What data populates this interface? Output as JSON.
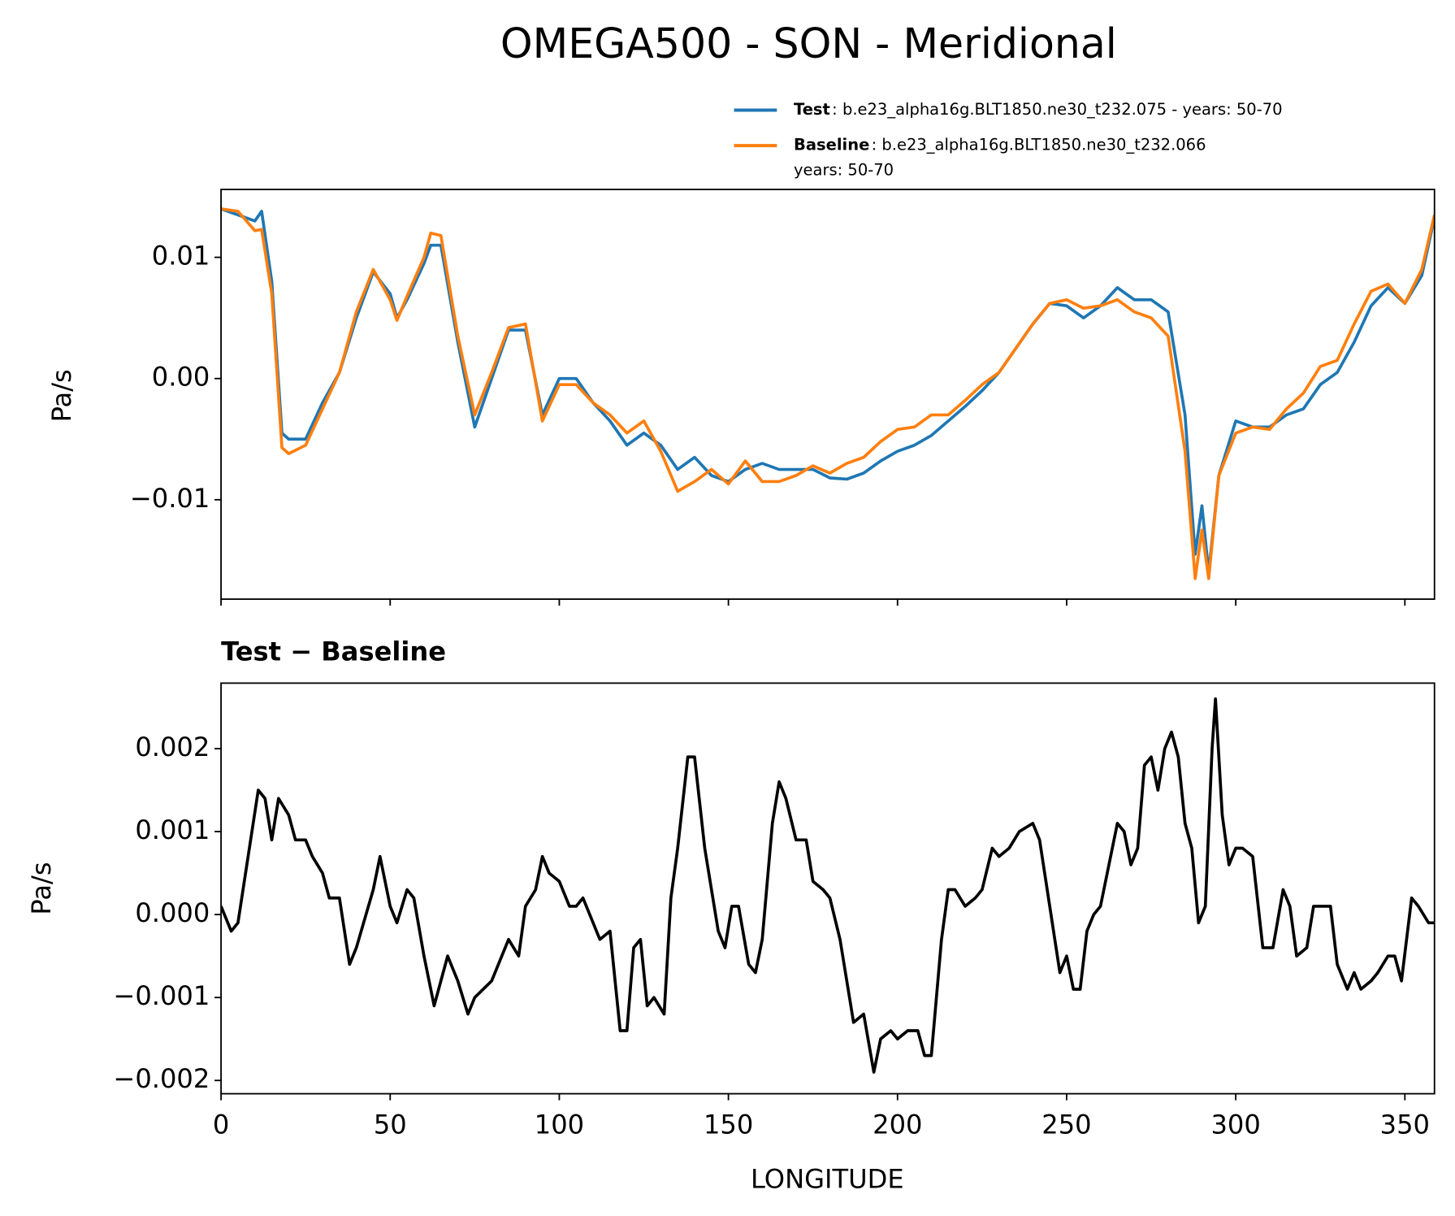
{
  "chart_data": [
    {
      "type": "line",
      "title": "OMEGA500 - SON - Meridional",
      "ylabel": "Pa/s",
      "x": [
        0,
        5,
        10,
        12,
        15,
        18,
        20,
        25,
        30,
        35,
        40,
        45,
        50,
        52,
        55,
        60,
        62,
        65,
        70,
        75,
        80,
        85,
        90,
        95,
        100,
        105,
        110,
        115,
        120,
        125,
        130,
        135,
        140,
        145,
        150,
        155,
        160,
        165,
        170,
        175,
        180,
        185,
        190,
        195,
        200,
        205,
        210,
        215,
        220,
        225,
        230,
        235,
        240,
        245,
        250,
        255,
        260,
        265,
        270,
        275,
        280,
        285,
        288,
        290,
        292,
        295,
        300,
        305,
        310,
        315,
        320,
        325,
        330,
        335,
        340,
        345,
        350,
        355,
        358.75
      ],
      "series": [
        {
          "name": "Test",
          "description": [
            ": b.e23_alpha16g.BLT1850.ne30_t232.075 - years: 50-70"
          ],
          "color": "#1f77b4",
          "values": [
            0.014,
            0.0135,
            0.013,
            0.0138,
            0.008,
            -0.0045,
            -0.005,
            -0.005,
            -0.002,
            0.0005,
            0.005,
            0.0088,
            0.007,
            0.005,
            0.0065,
            0.0095,
            0.011,
            0.011,
            0.003,
            -0.004,
            0,
            0.004,
            0.004,
            -0.003,
            0,
            0,
            -0.002,
            -0.0035,
            -0.0055,
            -0.0045,
            -0.0055,
            -0.0075,
            -0.0065,
            -0.008,
            -0.0085,
            -0.0075,
            -0.007,
            -0.0075,
            -0.0075,
            -0.0075,
            -0.0082,
            -0.0083,
            -0.0078,
            -0.0068,
            -0.006,
            -0.0055,
            -0.0047,
            -0.0035,
            -0.0023,
            -0.001,
            0.0005,
            0.0025,
            0.0045,
            0.0062,
            0.006,
            0.005,
            0.006,
            0.0075,
            0.0065,
            0.0065,
            0.0055,
            -0.003,
            -0.0145,
            -0.0105,
            -0.016,
            -0.008,
            -0.0035,
            -0.004,
            -0.004,
            -0.003,
            -0.0025,
            -0.0005,
            0.0005,
            0.003,
            0.006,
            0.0075,
            0.0062,
            0.0085,
            0.0133
          ]
        },
        {
          "name": "Baseline",
          "description": [
            ": b.e23_alpha16g.BLT1850.ne30_t232.066",
            "years: 50-70"
          ],
          "color": "#ff7f0e",
          "values": [
            0.014,
            0.0138,
            0.0122,
            0.0123,
            0.007,
            -0.0057,
            -0.0062,
            -0.0055,
            -0.0025,
            0.0005,
            0.0055,
            0.009,
            0.0065,
            0.0048,
            0.0068,
            0.01,
            0.012,
            0.0118,
            0.0035,
            -0.003,
            0.0005,
            0.0042,
            0.0045,
            -0.0035,
            -0.0005,
            -0.0005,
            -0.002,
            -0.003,
            -0.0045,
            -0.0035,
            -0.006,
            -0.0093,
            -0.0085,
            -0.0075,
            -0.0087,
            -0.0068,
            -0.0085,
            -0.0085,
            -0.008,
            -0.0072,
            -0.0078,
            -0.007,
            -0.0065,
            -0.0052,
            -0.0042,
            -0.004,
            -0.003,
            -0.003,
            -0.0018,
            -0.0005,
            0.0005,
            0.0025,
            0.0045,
            0.0062,
            0.0065,
            0.0058,
            0.006,
            0.0065,
            0.0055,
            0.005,
            0.0035,
            -0.006,
            -0.0165,
            -0.0125,
            -0.0165,
            -0.008,
            -0.0045,
            -0.004,
            -0.0042,
            -0.0025,
            -0.0012,
            0.001,
            0.0015,
            0.0045,
            0.0072,
            0.0078,
            0.0062,
            0.009,
            0.0135
          ]
        }
      ],
      "xlim": [
        0,
        358.75
      ],
      "xticks": [
        0,
        50,
        100,
        150,
        200,
        250,
        300,
        350
      ],
      "ylim": [
        -0.0182,
        0.0156
      ],
      "yticks": [
        {
          "value": -0.01,
          "label": "−0.01"
        },
        {
          "value": 0,
          "label": "0.00"
        },
        0.01
      ],
      "legend": "upper right"
    },
    {
      "type": "line",
      "title": "Test − Baseline",
      "xlabel": "LONGITUDE",
      "ylabel": "Pa/s",
      "x": [
        0,
        3,
        5,
        8,
        11,
        13,
        15,
        17,
        20,
        22,
        25,
        27,
        30,
        32,
        35,
        38,
        40,
        45,
        47,
        50,
        52,
        55,
        57,
        60,
        63,
        65,
        67,
        70,
        73,
        75,
        80,
        83,
        85,
        88,
        90,
        93,
        95,
        97,
        100,
        103,
        105,
        107,
        110,
        112,
        115,
        118,
        120,
        122,
        124,
        126,
        128,
        131,
        133,
        135,
        138,
        140,
        143,
        147,
        149,
        151,
        153,
        156,
        158,
        160,
        163,
        165,
        167,
        170,
        173,
        175,
        178,
        180,
        183,
        187,
        190,
        193,
        195,
        198,
        200,
        203,
        206,
        208,
        210,
        213,
        215,
        217,
        220,
        223,
        225,
        228,
        230,
        233,
        236,
        240,
        242,
        245,
        248,
        250,
        252,
        254,
        256,
        258,
        260,
        263,
        265,
        267,
        269,
        271,
        273,
        275,
        277,
        279,
        281,
        283,
        285,
        287,
        289,
        291,
        293,
        294,
        296,
        298,
        300,
        302,
        305,
        308,
        311,
        314,
        316,
        318,
        321,
        323,
        326,
        328,
        330,
        333,
        335,
        337,
        340,
        342,
        345,
        347,
        349,
        352,
        354,
        357,
        358.75
      ],
      "series": [
        {
          "name": "Test − Baseline",
          "color": "#000000",
          "values": [
            0.0001,
            -0.0002,
            -0.0001,
            0.0007,
            0.0015,
            0.0014,
            0.0009,
            0.0014,
            0.0012,
            0.0009,
            0.0009,
            0.0007,
            0.0005,
            0.0002,
            0.0002,
            -0.0006,
            -0.0004,
            0.0003,
            0.0007,
            0.0001,
            -0.0001,
            0.0003,
            0.0002,
            -0.0005,
            -0.0011,
            -0.0008,
            -0.0005,
            -0.0008,
            -0.0012,
            -0.001,
            -0.0008,
            -0.0005,
            -0.0003,
            -0.0005,
            0.0001,
            0.0003,
            0.0007,
            0.0005,
            0.0004,
            0.0001,
            0.0001,
            0.0002,
            -0.0001,
            -0.0003,
            -0.0002,
            -0.0014,
            -0.0014,
            -0.0004,
            -0.0003,
            -0.0011,
            -0.001,
            -0.0012,
            0.0002,
            0.0008,
            0.0019,
            0.0019,
            0.0008,
            -0.0002,
            -0.0004,
            0.0001,
            0.0001,
            -0.0006,
            -0.0007,
            -0.0003,
            0.0011,
            0.0016,
            0.0014,
            0.0009,
            0.0009,
            0.0004,
            0.0003,
            0.0002,
            -0.0003,
            -0.0013,
            -0.0012,
            -0.0019,
            -0.0015,
            -0.0014,
            -0.0015,
            -0.0014,
            -0.0014,
            -0.0017,
            -0.0017,
            -0.0003,
            0.0003,
            0.0003,
            0.0001,
            0.0002,
            0.0003,
            0.0008,
            0.0007,
            0.0008,
            0.001,
            0.0011,
            0.0009,
            0.0001,
            -0.0007,
            -0.0005,
            -0.0009,
            -0.0009,
            -0.0002,
            0,
            0.0001,
            0.0007,
            0.0011,
            0.001,
            0.0006,
            0.0008,
            0.0018,
            0.0019,
            0.0015,
            0.002,
            0.0022,
            0.0019,
            0.0011,
            0.0008,
            -0.0001,
            0.0001,
            0.002,
            0.0026,
            0.0012,
            0.0006,
            0.0008,
            0.0008,
            0.0007,
            -0.0004,
            -0.0004,
            0.0003,
            0.0001,
            -0.0005,
            -0.0004,
            0.0001,
            0.0001,
            0.0001,
            -0.0006,
            -0.0009,
            -0.0007,
            -0.0009,
            -0.0008,
            -0.0007,
            -0.0005,
            -0.0005,
            -0.0008,
            0.0002,
            0.0001,
            -0.0001,
            -0.0001
          ]
        }
      ],
      "xlim": [
        0,
        358.75
      ],
      "xticks": [
        0,
        50,
        100,
        150,
        200,
        250,
        300,
        350
      ],
      "ylim": [
        -0.00216,
        0.00279
      ],
      "yticks": [
        {
          "value": -0.002,
          "label": "−0.002"
        },
        {
          "value": -0.001,
          "label": "−0.001"
        },
        {
          "value": 0,
          "label": "0.000"
        },
        0.001,
        0.002
      ]
    }
  ]
}
